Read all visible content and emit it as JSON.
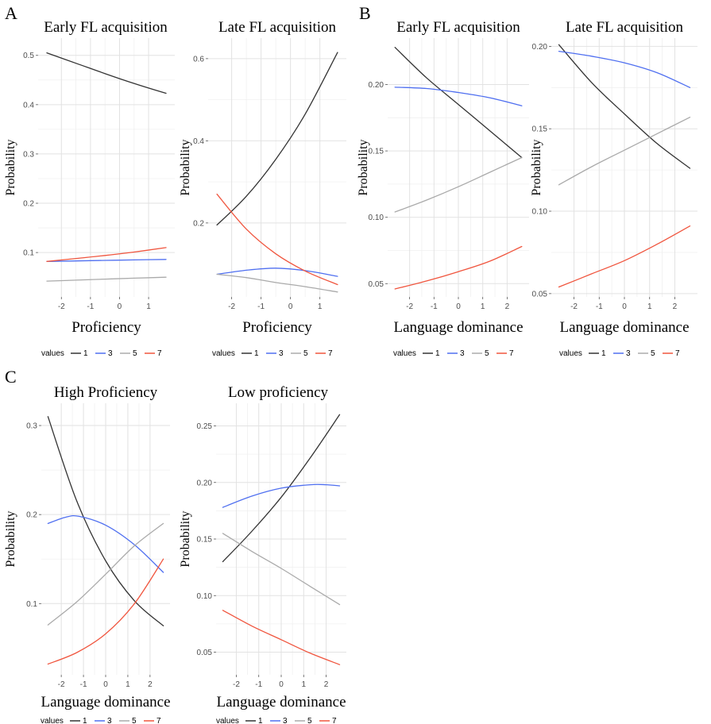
{
  "panel_letters": [
    "A",
    "B",
    "C"
  ],
  "legend": {
    "title": "values",
    "entries": [
      "1",
      "3",
      "5",
      "7"
    ]
  },
  "colors": {
    "1": "#333333",
    "3": "#4f6ff0",
    "5": "#aaaaaa",
    "7": "#f0553e"
  },
  "chart_data": [
    {
      "type": "line",
      "title": "Early FL acquisition",
      "xlabel": "Proficiency",
      "ylabel": "Probability",
      "xlim": [
        -2.8,
        1.9
      ],
      "ylim": [
        0.01,
        0.535
      ],
      "xticks": [
        -2,
        -1,
        0,
        1
      ],
      "yticks": [
        0.1,
        0.2,
        0.3,
        0.4,
        0.5
      ],
      "ytick_labels": [
        "0.1",
        "0.2",
        "0.3",
        "0.4",
        "0.5"
      ],
      "grid": true,
      "series": [
        {
          "name": "1",
          "x": [
            -2.5,
            -1.5,
            -0.5,
            0.5,
            1.6
          ],
          "y": [
            0.505,
            0.484,
            0.463,
            0.443,
            0.423
          ]
        },
        {
          "name": "3",
          "x": [
            -2.5,
            -1.5,
            -0.5,
            0.5,
            1.6
          ],
          "y": [
            0.082,
            0.083,
            0.084,
            0.085,
            0.086
          ]
        },
        {
          "name": "5",
          "x": [
            -2.5,
            -1.5,
            -0.5,
            0.5,
            1.6
          ],
          "y": [
            0.042,
            0.044,
            0.046,
            0.048,
            0.05
          ]
        },
        {
          "name": "7",
          "x": [
            -2.5,
            -1.5,
            -0.5,
            0.5,
            1.6
          ],
          "y": [
            0.082,
            0.088,
            0.094,
            0.101,
            0.11
          ]
        }
      ]
    },
    {
      "type": "line",
      "title": "Late FL acquisition",
      "xlabel": "Proficiency",
      "ylabel": "Probability",
      "xlim": [
        -2.8,
        1.9
      ],
      "ylim": [
        0.02,
        0.65
      ],
      "xticks": [
        -2,
        -1,
        0,
        1
      ],
      "yticks": [
        0.2,
        0.4,
        0.6
      ],
      "ytick_labels": [
        "0.2",
        "0.4",
        "0.6"
      ],
      "grid": true,
      "series": [
        {
          "name": "1",
          "x": [
            -2.5,
            -1.5,
            -0.5,
            0.5,
            1.6
          ],
          "y": [
            0.195,
            0.265,
            0.355,
            0.465,
            0.615
          ]
        },
        {
          "name": "3",
          "x": [
            -2.5,
            -1.5,
            -0.5,
            0.5,
            1.6
          ],
          "y": [
            0.075,
            0.085,
            0.09,
            0.084,
            0.07
          ]
        },
        {
          "name": "5",
          "x": [
            -2.5,
            -1.5,
            -0.5,
            0.5,
            1.6
          ],
          "y": [
            0.075,
            0.067,
            0.055,
            0.045,
            0.032
          ]
        },
        {
          "name": "7",
          "x": [
            -2.5,
            -1.5,
            -0.5,
            0.5,
            1.6
          ],
          "y": [
            0.27,
            0.185,
            0.125,
            0.083,
            0.05
          ]
        }
      ]
    },
    {
      "type": "line",
      "title": "Early FL acquisition",
      "xlabel": "Language dominance",
      "ylabel": "Probability",
      "xlim": [
        -2.9,
        2.9
      ],
      "ylim": [
        0.04,
        0.235
      ],
      "xticks": [
        -2,
        -1,
        0,
        1,
        2
      ],
      "yticks": [
        0.05,
        0.1,
        0.15,
        0.2
      ],
      "ytick_labels": [
        "0.05",
        "0.10",
        "0.15",
        "0.20"
      ],
      "grid": true,
      "series": [
        {
          "name": "1",
          "x": [
            -2.6,
            -1.3,
            0,
            1.3,
            2.6
          ],
          "y": [
            0.228,
            0.205,
            0.185,
            0.165,
            0.145
          ]
        },
        {
          "name": "3",
          "x": [
            -2.6,
            -1.3,
            0,
            1.3,
            2.6
          ],
          "y": [
            0.198,
            0.197,
            0.194,
            0.19,
            0.184
          ]
        },
        {
          "name": "5",
          "x": [
            -2.6,
            -1.3,
            0,
            1.3,
            2.6
          ],
          "y": [
            0.104,
            0.113,
            0.123,
            0.134,
            0.145
          ]
        },
        {
          "name": "7",
          "x": [
            -2.6,
            -1.3,
            0,
            1.3,
            2.6
          ],
          "y": [
            0.046,
            0.052,
            0.059,
            0.067,
            0.078
          ]
        }
      ]
    },
    {
      "type": "line",
      "title": "Late FL acquisition",
      "xlabel": "Language dominance",
      "ylabel": "Probability",
      "xlim": [
        -2.9,
        2.9
      ],
      "ylim": [
        0.048,
        0.205
      ],
      "xticks": [
        -2,
        -1,
        0,
        1,
        2
      ],
      "yticks": [
        0.05,
        0.1,
        0.15,
        0.2
      ],
      "ytick_labels": [
        "0.05",
        "0.10",
        "0.15",
        "0.20"
      ],
      "grid": true,
      "series": [
        {
          "name": "1",
          "x": [
            -2.6,
            -1.3,
            0,
            1.3,
            2.6
          ],
          "y": [
            0.201,
            0.178,
            0.159,
            0.141,
            0.126
          ]
        },
        {
          "name": "3",
          "x": [
            -2.6,
            -1.3,
            0,
            1.3,
            2.6
          ],
          "y": [
            0.197,
            0.194,
            0.19,
            0.184,
            0.175
          ]
        },
        {
          "name": "5",
          "x": [
            -2.6,
            -1.3,
            0,
            1.3,
            2.6
          ],
          "y": [
            0.116,
            0.127,
            0.137,
            0.147,
            0.157
          ]
        },
        {
          "name": "7",
          "x": [
            -2.6,
            -1.3,
            0,
            1.3,
            2.6
          ],
          "y": [
            0.054,
            0.062,
            0.07,
            0.08,
            0.091
          ]
        }
      ]
    },
    {
      "type": "line",
      "title": "High Proficiency",
      "xlabel": "Language dominance",
      "ylabel": "Probability",
      "xlim": [
        -2.9,
        2.9
      ],
      "ylim": [
        0.02,
        0.325
      ],
      "xticks": [
        -2,
        -1,
        0,
        1,
        2
      ],
      "yticks": [
        0.1,
        0.2,
        0.3
      ],
      "ytick_labels": [
        "0.1",
        "0.2",
        "0.3"
      ],
      "grid": true,
      "series": [
        {
          "name": "1",
          "x": [
            -2.6,
            -1.3,
            0,
            1.3,
            2.6
          ],
          "y": [
            0.31,
            0.215,
            0.148,
            0.103,
            0.075
          ]
        },
        {
          "name": "3",
          "x": [
            -2.6,
            -1.8,
            -1.2,
            0,
            1.3,
            2.6
          ],
          "y": [
            0.19,
            0.197,
            0.198,
            0.188,
            0.166,
            0.135
          ]
        },
        {
          "name": "5",
          "x": [
            -2.6,
            -1.3,
            0,
            1.3,
            2.6
          ],
          "y": [
            0.076,
            0.102,
            0.133,
            0.165,
            0.19
          ]
        },
        {
          "name": "7",
          "x": [
            -2.6,
            -1.3,
            0,
            1.3,
            2.6
          ],
          "y": [
            0.032,
            0.045,
            0.066,
            0.1,
            0.15
          ]
        }
      ]
    },
    {
      "type": "line",
      "title": "Low proficiency",
      "xlabel": "Language dominance",
      "ylabel": "Probability",
      "xlim": [
        -2.9,
        2.9
      ],
      "ylim": [
        0.03,
        0.27
      ],
      "xticks": [
        -2,
        -1,
        0,
        1,
        2
      ],
      "yticks": [
        0.05,
        0.1,
        0.15,
        0.2,
        0.25
      ],
      "ytick_labels": [
        "0.05",
        "0.10",
        "0.15",
        "0.20",
        "0.25"
      ],
      "grid": true,
      "series": [
        {
          "name": "1",
          "x": [
            -2.6,
            -1.3,
            0,
            1.3,
            2.6
          ],
          "y": [
            0.13,
            0.157,
            0.187,
            0.222,
            0.26
          ]
        },
        {
          "name": "3",
          "x": [
            -2.6,
            -1.3,
            0,
            1.3,
            2.0,
            2.6
          ],
          "y": [
            0.178,
            0.188,
            0.195,
            0.198,
            0.198,
            0.197
          ]
        },
        {
          "name": "5",
          "x": [
            -2.6,
            -1.3,
            0,
            1.3,
            2.6
          ],
          "y": [
            0.155,
            0.139,
            0.124,
            0.108,
            0.092
          ]
        },
        {
          "name": "7",
          "x": [
            -2.6,
            -1.3,
            0,
            1.3,
            2.6
          ],
          "y": [
            0.087,
            0.073,
            0.061,
            0.049,
            0.039
          ]
        }
      ]
    }
  ]
}
